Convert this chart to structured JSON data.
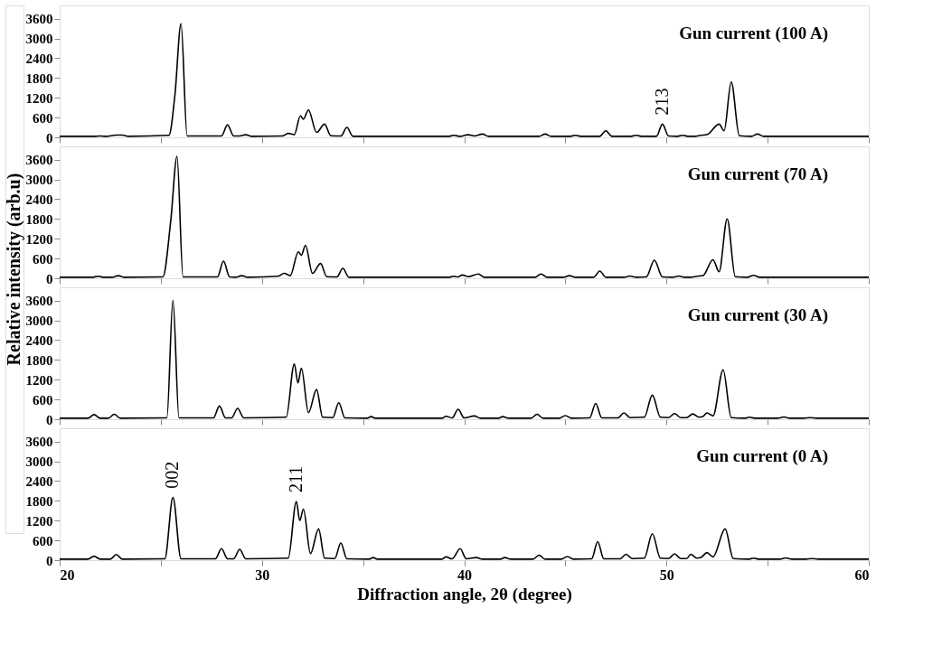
{
  "chart_data": [
    {
      "type": "line",
      "annotations": [
        "Gun current (100 A)",
        {
          "text": "213",
          "x": 49.8,
          "y": 400
        }
      ],
      "xlim": [
        20,
        60
      ],
      "ylim": [
        0,
        4000
      ],
      "xticks": [
        20,
        {
          "value": 25,
          "label": null
        },
        30,
        {
          "value": 35,
          "label": null
        },
        40,
        {
          "value": 45,
          "label": null
        },
        50,
        {
          "value": 55,
          "label": null
        },
        60
      ],
      "yticks": [
        0,
        600,
        1200,
        1800,
        2400,
        3000,
        3600
      ],
      "tick_labels": "y",
      "grid": false,
      "x": [
        20,
        21.7,
        22.0,
        22.3,
        22.8,
        23.1,
        23.4,
        25.4,
        25.7,
        26.0,
        26.3,
        28.0,
        28.3,
        28.6,
        28.9,
        29.2,
        29.5,
        31.0,
        31.3,
        31.6,
        31.9,
        32.05,
        32.3,
        32.7,
        33.1,
        33.4,
        33.9,
        34.2,
        34.5,
        39.2,
        39.5,
        39.8,
        40.2,
        40.5,
        40.9,
        41.2,
        43.7,
        44.0,
        44.3,
        45.2,
        45.5,
        45.8,
        46.7,
        47.0,
        47.3,
        48.2,
        48.5,
        48.8,
        49.5,
        49.8,
        50.1,
        50.5,
        50.8,
        51.1,
        51.4,
        51.7,
        52.0,
        52.6,
        52.85,
        53.2,
        53.6,
        54.2,
        54.5,
        54.8,
        60
      ],
      "series": [
        {
          "color": "#000000",
          "values": [
            30,
            30,
            40,
            30,
            70,
            70,
            30,
            60,
            1300,
            3450,
            40,
            40,
            380,
            40,
            40,
            80,
            30,
            40,
            120,
            80,
            650,
            550,
            830,
            150,
            400,
            50,
            40,
            300,
            30,
            30,
            60,
            30,
            80,
            40,
            100,
            30,
            30,
            100,
            30,
            30,
            60,
            30,
            30,
            200,
            30,
            30,
            60,
            30,
            30,
            400,
            40,
            30,
            60,
            30,
            30,
            60,
            80,
            400,
            200,
            1680,
            50,
            30,
            100,
            30,
            30
          ]
        }
      ]
    },
    {
      "type": "line",
      "annotations": [
        "Gun current (70 A)"
      ],
      "xlim": [
        20,
        60
      ],
      "ylim": [
        0,
        4000
      ],
      "xticks": [
        20,
        {
          "value": 25,
          "label": null
        },
        30,
        {
          "value": 35,
          "label": null
        },
        40,
        {
          "value": 45,
          "label": null
        },
        50,
        {
          "value": 55,
          "label": null
        },
        60
      ],
      "yticks": [
        0,
        600,
        1200,
        1800,
        2400,
        3000,
        3600
      ],
      "tick_labels": "y",
      "grid": false,
      "ylabel": "Relative intensity (arb.u)",
      "x": [
        20,
        21.6,
        21.9,
        22.2,
        22.6,
        22.9,
        23.2,
        25.1,
        25.5,
        25.8,
        26.1,
        27.8,
        28.1,
        28.4,
        28.7,
        29.0,
        29.3,
        30.8,
        31.1,
        31.4,
        31.8,
        31.95,
        32.15,
        32.5,
        32.9,
        33.2,
        33.7,
        34.0,
        34.3,
        39.2,
        39.5,
        39.7,
        39.9,
        40.2,
        40.7,
        41.0,
        43.5,
        43.8,
        44.1,
        44.9,
        45.2,
        45.5,
        46.4,
        46.7,
        47.0,
        47.9,
        48.2,
        48.5,
        49.0,
        49.4,
        49.8,
        50.3,
        50.6,
        50.9,
        51.2,
        51.5,
        51.8,
        52.3,
        52.6,
        53.0,
        53.4,
        54.0,
        54.3,
        54.6,
        60
      ],
      "series": [
        {
          "color": "#000000",
          "values": [
            30,
            30,
            60,
            30,
            30,
            80,
            30,
            40,
            1800,
            3700,
            40,
            40,
            520,
            40,
            30,
            80,
            30,
            60,
            150,
            80,
            800,
            700,
            1000,
            150,
            450,
            50,
            40,
            300,
            30,
            30,
            60,
            40,
            100,
            50,
            130,
            30,
            30,
            130,
            30,
            30,
            80,
            30,
            30,
            220,
            30,
            30,
            70,
            30,
            40,
            550,
            40,
            30,
            70,
            30,
            30,
            60,
            80,
            560,
            200,
            1800,
            50,
            30,
            90,
            30,
            30
          ]
        }
      ]
    },
    {
      "type": "line",
      "annotations": [
        "Gun current (30 A)"
      ],
      "xlim": [
        20,
        60
      ],
      "ylim": [
        0,
        4000
      ],
      "xticks": [
        20,
        {
          "value": 25,
          "label": null
        },
        30,
        {
          "value": 35,
          "label": null
        },
        40,
        {
          "value": 45,
          "label": null
        },
        50,
        {
          "value": 55,
          "label": null
        },
        60
      ],
      "yticks": [
        0,
        600,
        1200,
        1800,
        2400,
        3000,
        3600
      ],
      "tick_labels": "y",
      "grid": false,
      "x": [
        20,
        21.4,
        21.7,
        22.0,
        22.4,
        22.7,
        23.0,
        25.3,
        25.6,
        25.9,
        27.6,
        27.9,
        28.2,
        28.5,
        28.8,
        29.1,
        31.2,
        31.6,
        31.78,
        31.95,
        32.3,
        32.7,
        33.0,
        33.5,
        33.8,
        34.1,
        35.2,
        35.4,
        35.6,
        38.9,
        39.1,
        39.4,
        39.7,
        40.0,
        40.5,
        40.8,
        41.7,
        41.9,
        42.2,
        43.3,
        43.6,
        43.9,
        44.7,
        45.0,
        45.3,
        46.2,
        46.5,
        46.8,
        47.6,
        47.9,
        48.2,
        48.9,
        49.3,
        49.7,
        50.1,
        50.4,
        50.7,
        51.0,
        51.3,
        51.6,
        51.8,
        52.0,
        52.3,
        52.8,
        53.2,
        53.9,
        54.1,
        54.4,
        55.5,
        55.8,
        56.1,
        56.8,
        57.1,
        57.4,
        60
      ],
      "series": [
        {
          "color": "#000000",
          "values": [
            30,
            30,
            140,
            30,
            30,
            150,
            30,
            40,
            3600,
            40,
            40,
            400,
            40,
            40,
            330,
            40,
            60,
            1680,
            1100,
            1550,
            200,
            900,
            60,
            50,
            500,
            40,
            30,
            80,
            30,
            30,
            90,
            40,
            300,
            40,
            100,
            30,
            30,
            80,
            30,
            30,
            150,
            30,
            30,
            110,
            30,
            40,
            480,
            40,
            40,
            190,
            50,
            60,
            730,
            60,
            50,
            170,
            50,
            50,
            160,
            60,
            80,
            190,
            100,
            1500,
            50,
            30,
            60,
            30,
            30,
            70,
            30,
            30,
            50,
            30,
            30
          ]
        }
      ]
    },
    {
      "type": "line",
      "annotations": [
        "Gun current (0 A)",
        {
          "text": "002",
          "x": 25.6,
          "y": 1900
        },
        {
          "text": "211",
          "x": 31.7,
          "y": 1780
        }
      ],
      "xlabel": "Diffraction angle, 2θ (degree)",
      "xlim": [
        20,
        60
      ],
      "ylim": [
        0,
        4000
      ],
      "xticks": [
        20,
        {
          "value": 25,
          "label": null
        },
        30,
        {
          "value": 35,
          "label": null
        },
        40,
        {
          "value": 45,
          "label": null
        },
        50,
        {
          "value": 55,
          "label": null
        },
        60
      ],
      "yticks": [
        0,
        600,
        1200,
        1800,
        2400,
        3000,
        3600
      ],
      "grid": false,
      "x": [
        20,
        21.4,
        21.7,
        22.0,
        22.5,
        22.8,
        23.1,
        25.2,
        25.6,
        26.0,
        27.7,
        28.0,
        28.3,
        28.6,
        28.9,
        29.2,
        31.3,
        31.7,
        31.87,
        32.05,
        32.4,
        32.8,
        33.1,
        33.6,
        33.9,
        34.2,
        35.3,
        35.5,
        35.7,
        38.9,
        39.1,
        39.4,
        39.8,
        40.1,
        40.6,
        40.9,
        41.8,
        42.0,
        42.3,
        43.4,
        43.7,
        44.0,
        44.8,
        45.1,
        45.4,
        46.3,
        46.6,
        46.9,
        47.7,
        48.0,
        48.3,
        48.9,
        49.3,
        49.7,
        50.1,
        50.4,
        50.7,
        51.0,
        51.2,
        51.5,
        51.7,
        52.0,
        52.3,
        52.9,
        53.3,
        54.1,
        54.3,
        54.6,
        55.6,
        55.9,
        56.2,
        56.9,
        57.2,
        57.5,
        60
      ],
      "series": [
        {
          "color": "#000000",
          "values": [
            30,
            30,
            120,
            30,
            30,
            170,
            30,
            40,
            1900,
            40,
            40,
            350,
            40,
            40,
            330,
            40,
            60,
            1780,
            1200,
            1550,
            200,
            950,
            60,
            50,
            520,
            40,
            30,
            80,
            30,
            30,
            100,
            40,
            350,
            40,
            80,
            30,
            30,
            80,
            30,
            30,
            150,
            30,
            30,
            110,
            30,
            40,
            560,
            40,
            40,
            180,
            50,
            60,
            800,
            60,
            50,
            190,
            50,
            50,
            180,
            60,
            80,
            230,
            100,
            950,
            50,
            30,
            60,
            30,
            30,
            70,
            30,
            30,
            50,
            30,
            30
          ]
        }
      ]
    }
  ]
}
